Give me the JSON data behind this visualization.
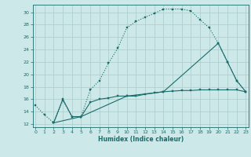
{
  "xlabel": "Humidex (Indice chaleur)",
  "bg_color": "#cce8e8",
  "grid_color": "#aacccc",
  "line_color": "#1a6b6b",
  "xlim": [
    -0.3,
    23.3
  ],
  "ylim": [
    11.5,
    31.2
  ],
  "yticks": [
    12,
    14,
    16,
    18,
    20,
    22,
    24,
    26,
    28,
    30
  ],
  "xticks": [
    0,
    1,
    2,
    3,
    4,
    5,
    6,
    7,
    8,
    9,
    10,
    11,
    12,
    13,
    14,
    15,
    16,
    17,
    18,
    19,
    20,
    21,
    22,
    23
  ],
  "line1_x": [
    0,
    1,
    2,
    3,
    4,
    5,
    6,
    7,
    8,
    9,
    10,
    11,
    12,
    13,
    14,
    15,
    16,
    17,
    18,
    19,
    20,
    21,
    22,
    23
  ],
  "line1_y": [
    15.0,
    13.5,
    12.2,
    15.8,
    13.2,
    13.2,
    17.5,
    19.0,
    21.8,
    24.2,
    27.5,
    28.5,
    29.2,
    29.8,
    30.5,
    30.5,
    30.5,
    30.2,
    28.8,
    27.5,
    25.0,
    22.0,
    19.0,
    17.2
  ],
  "line2_x": [
    2,
    3,
    4,
    5,
    6,
    7,
    8,
    9,
    10,
    11,
    12,
    13,
    14,
    15,
    16,
    17,
    18,
    19,
    20,
    21,
    22,
    23
  ],
  "line2_y": [
    12.2,
    16.0,
    13.2,
    13.2,
    15.5,
    16.0,
    16.2,
    16.5,
    16.5,
    16.5,
    16.8,
    17.0,
    17.2,
    17.3,
    17.4,
    17.4,
    17.5,
    17.5,
    17.5,
    17.5,
    17.5,
    17.2
  ],
  "line3_x": [
    2,
    5,
    10,
    14,
    20,
    21,
    22,
    23
  ],
  "line3_y": [
    12.2,
    13.2,
    16.5,
    17.2,
    25.0,
    22.0,
    19.0,
    17.2
  ]
}
